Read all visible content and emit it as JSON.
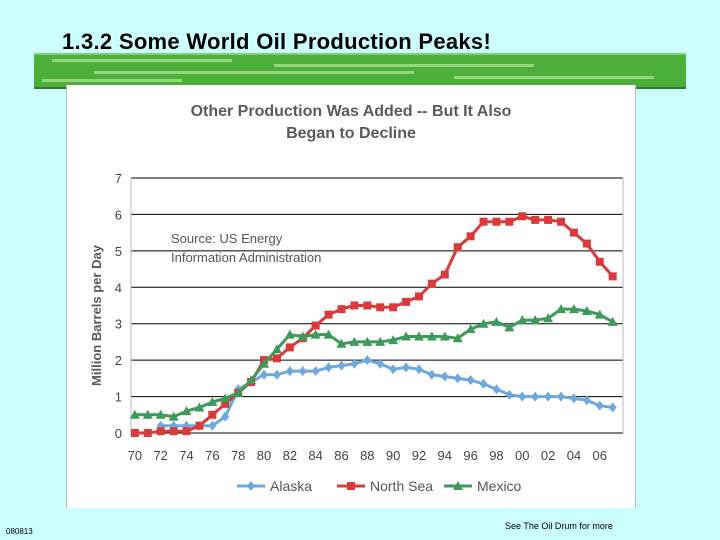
{
  "slide": {
    "title": "1.3.2 Some World Oil Production Peaks!",
    "slide_code": "080813",
    "footer_note": "See The Oil Drum for more"
  },
  "colors": {
    "background": "#ccffff",
    "title_bar": "#4caf3a",
    "alaska": "#6fa8dc",
    "north_sea": "#d93b3b",
    "mexico": "#3d9a5a",
    "title_text": "#5a5a5a"
  },
  "chart_data": {
    "type": "line",
    "title": "Other Production Was Added -- But It Also Began to Decline",
    "title_lines": [
      "Other Production Was Added -- But It Also",
      "Began to Decline"
    ],
    "annotation_lines": [
      "Source: US Energy",
      "Information Administration"
    ],
    "xlabel": "",
    "ylabel": "Million Barrels per Day",
    "x": [
      1970,
      1971,
      1972,
      1973,
      1974,
      1975,
      1976,
      1977,
      1978,
      1979,
      1980,
      1981,
      1982,
      1983,
      1984,
      1985,
      1986,
      1987,
      1988,
      1989,
      1990,
      1991,
      1992,
      1993,
      1994,
      1995,
      1996,
      1997,
      1998,
      1999,
      2000,
      2001,
      2002,
      2003,
      2004,
      2005,
      2006,
      2007
    ],
    "x_tick_labels": [
      "70",
      "72",
      "74",
      "76",
      "78",
      "80",
      "82",
      "84",
      "86",
      "88",
      "90",
      "92",
      "94",
      "96",
      "98",
      "00",
      "02",
      "04",
      "06"
    ],
    "ylim": [
      0,
      7
    ],
    "y_ticks": [
      0,
      1,
      2,
      3,
      4,
      5,
      6,
      7
    ],
    "grid": "horizontal",
    "legend_position": "bottom",
    "series": [
      {
        "name": "Alaska",
        "marker": "diamond",
        "values": [
          null,
          null,
          0.2,
          0.2,
          0.2,
          0.2,
          0.2,
          0.45,
          1.2,
          1.4,
          1.6,
          1.6,
          1.7,
          1.7,
          1.7,
          1.8,
          1.85,
          1.9,
          2.0,
          1.9,
          1.75,
          1.8,
          1.75,
          1.6,
          1.55,
          1.5,
          1.45,
          1.35,
          1.2,
          1.05,
          1.0,
          1.0,
          1.0,
          1.0,
          0.95,
          0.9,
          0.75,
          0.7
        ]
      },
      {
        "name": "North Sea",
        "marker": "square",
        "values": [
          0.0,
          0.0,
          0.05,
          0.05,
          0.05,
          0.2,
          0.5,
          0.8,
          1.1,
          1.4,
          2.0,
          2.05,
          2.35,
          2.6,
          2.95,
          3.25,
          3.4,
          3.5,
          3.5,
          3.45,
          3.45,
          3.6,
          3.75,
          4.1,
          4.35,
          5.1,
          5.4,
          5.8,
          5.8,
          5.8,
          5.95,
          5.85,
          5.85,
          5.8,
          5.5,
          5.2,
          4.7,
          4.3
        ]
      },
      {
        "name": "Mexico",
        "marker": "triangle",
        "values": [
          0.5,
          0.5,
          0.5,
          0.45,
          0.6,
          0.7,
          0.85,
          0.95,
          1.1,
          1.45,
          1.9,
          2.3,
          2.7,
          2.65,
          2.7,
          2.7,
          2.45,
          2.5,
          2.5,
          2.5,
          2.55,
          2.65,
          2.65,
          2.65,
          2.65,
          2.6,
          2.85,
          3.0,
          3.05,
          2.9,
          3.1,
          3.1,
          3.15,
          3.4,
          3.4,
          3.35,
          3.25,
          3.05
        ]
      }
    ]
  }
}
